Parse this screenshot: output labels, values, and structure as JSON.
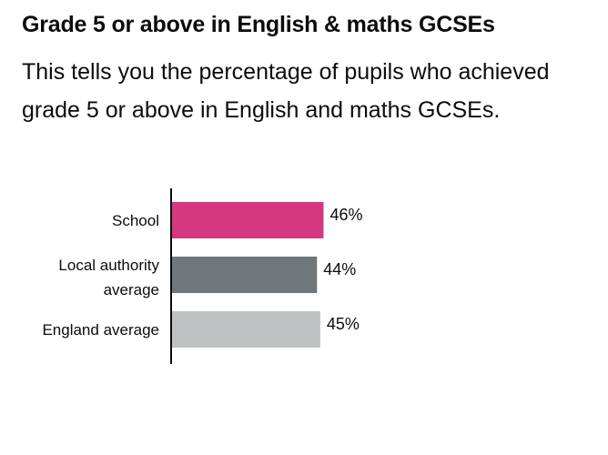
{
  "page": {
    "title": "Grade 5 or above in English & maths GCSEs",
    "description": "This tells you the percentage of pupils who achieved grade 5 or above in English and maths GCSEs."
  },
  "chart_data": {
    "type": "bar",
    "orientation": "horizontal",
    "categories": [
      [
        "School"
      ],
      [
        "Local authority",
        "average"
      ],
      [
        "England average"
      ]
    ],
    "values": [
      46,
      44,
      45
    ],
    "value_labels": [
      "46%",
      "44%",
      "45%"
    ],
    "unit": "%",
    "colors": [
      "#d53880",
      "#6f777b",
      "#bfc1c3"
    ],
    "xlim": [
      0,
      100
    ],
    "axis_color": "#0b0c0c",
    "grid": false,
    "legend": "none"
  }
}
